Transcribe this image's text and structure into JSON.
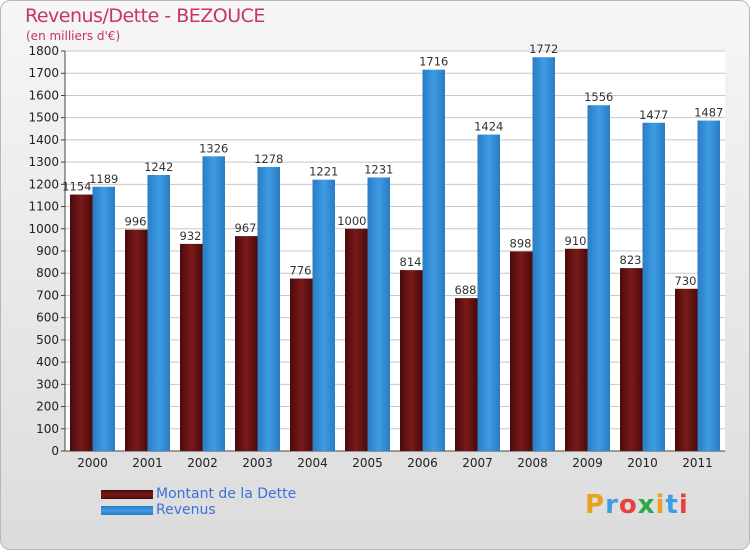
{
  "chart_data": {
    "type": "bar",
    "title": "Revenus/Dette - BEZOUCE",
    "subtitle": "(en milliers d'€)",
    "categories": [
      "2000",
      "2001",
      "2002",
      "2003",
      "2004",
      "2005",
      "2006",
      "2007",
      "2008",
      "2009",
      "2010",
      "2011"
    ],
    "series": [
      {
        "name": "Montant de la Dette",
        "color": "#7a1a1a",
        "values": [
          1154,
          996,
          932,
          967,
          776,
          1000,
          814,
          688,
          898,
          910,
          823,
          730
        ]
      },
      {
        "name": "Revenus",
        "color": "#3d9ce3",
        "values": [
          1189,
          1242,
          1326,
          1278,
          1221,
          1231,
          1716,
          1424,
          1772,
          1556,
          1477,
          1487
        ]
      }
    ],
    "ylim": [
      0,
      1800
    ],
    "yticks": [
      0,
      100,
      200,
      300,
      400,
      500,
      600,
      700,
      800,
      900,
      1000,
      1100,
      1200,
      1300,
      1400,
      1500,
      1600,
      1700,
      1800
    ],
    "grid": true,
    "legend_position": "bottom-left"
  },
  "logo": {
    "text": "Proxiti",
    "colors": [
      "#e8a020",
      "#3d9ce3",
      "#e84040",
      "#2aa84a"
    ]
  }
}
